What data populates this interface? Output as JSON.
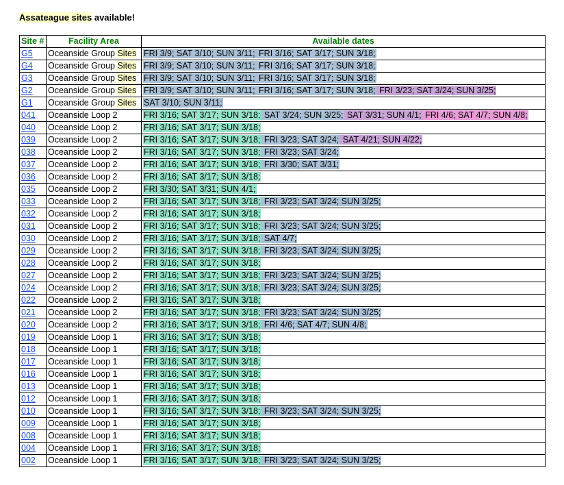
{
  "heading": {
    "highlight": "Assateague sites",
    "rest": " available!"
  },
  "columns": {
    "site": "Site #",
    "area": "Facility Area",
    "dates": "Available dates"
  },
  "rows": [
    {
      "site": "G5",
      "area": "Oceanside Group ",
      "area_hl": "Sites",
      "dates": [
        [
          "FRI 3/9; SAT 3/10; SUN 3/11;",
          "g2"
        ],
        [
          " FRI 3/16; SAT 3/17; SUN 3/18;",
          "g2"
        ]
      ]
    },
    {
      "site": "G4",
      "area": "Oceanside Group ",
      "area_hl": "Sites",
      "dates": [
        [
          "FRI 3/9; SAT 3/10; SUN 3/11;",
          "g2"
        ],
        [
          " FRI 3/16; SAT 3/17; SUN 3/18;",
          "g2"
        ]
      ]
    },
    {
      "site": "G3",
      "area": "Oceanside Group ",
      "area_hl": "Sites",
      "dates": [
        [
          "FRI 3/9; SAT 3/10; SUN 3/11;",
          "g2"
        ],
        [
          " FRI 3/16; SAT 3/17; SUN 3/18;",
          "g2"
        ]
      ]
    },
    {
      "site": "G2",
      "area": "Oceanside Group ",
      "area_hl": "Sites",
      "dates": [
        [
          "FRI 3/9; SAT 3/10; SUN 3/11;",
          "g2"
        ],
        [
          " FRI 3/16; SAT 3/17; SUN 3/18;",
          "g2"
        ],
        [
          " FRI 3/23; SAT 3/24; SUN 3/25;",
          "g3"
        ]
      ]
    },
    {
      "site": "G1",
      "area": "Oceanside Group ",
      "area_hl": "Sites",
      "dates": [
        [
          "SAT 3/10; SUN 3/11;",
          "g2"
        ]
      ]
    },
    {
      "site": "041",
      "area": "Oceanside Loop 2",
      "dates": [
        [
          "FRI 3/16; SAT 3/17; SUN 3/18;",
          "g1"
        ],
        [
          " SAT 3/24; SUN 3/25;",
          "g2"
        ],
        [
          " SAT 3/31; SUN 4/1;",
          "g3"
        ],
        [
          " FRI 4/6; SAT 4/7; SUN 4/8;",
          "g4"
        ]
      ]
    },
    {
      "site": "040",
      "area": "Oceanside Loop 2",
      "dates": [
        [
          "FRI 3/16; SAT 3/17; SUN 3/18;",
          "g1"
        ]
      ]
    },
    {
      "site": "039",
      "area": "Oceanside Loop 2",
      "dates": [
        [
          "FRI 3/16; SAT 3/17; SUN 3/18;",
          "g1"
        ],
        [
          " FRI 3/23; SAT 3/24;",
          "g2"
        ],
        [
          " SAT 4/21; SUN 4/22;",
          "g3"
        ]
      ]
    },
    {
      "site": "038",
      "area": "Oceanside Loop 2",
      "dates": [
        [
          "FRI 3/16; SAT 3/17; SUN 3/18;",
          "g1"
        ],
        [
          " FRI 3/23; SAT 3/24;",
          "g2"
        ]
      ]
    },
    {
      "site": "037",
      "area": "Oceanside Loop 2",
      "dates": [
        [
          "FRI 3/16; SAT 3/17; SUN 3/18;",
          "g1"
        ],
        [
          " FRI 3/30; SAT 3/31;",
          "g2"
        ]
      ]
    },
    {
      "site": "036",
      "area": "Oceanside Loop 2",
      "dates": [
        [
          "FRI 3/16; SAT 3/17; SUN 3/18;",
          "g1"
        ]
      ]
    },
    {
      "site": "035",
      "area": "Oceanside Loop 2",
      "dates": [
        [
          "FRI 3/30; SAT 3/31; SUN 4/1;",
          "g1"
        ]
      ]
    },
    {
      "site": "033",
      "area": "Oceanside Loop 2",
      "dates": [
        [
          "FRI 3/16; SAT 3/17; SUN 3/18;",
          "g1"
        ],
        [
          " FRI 3/23; SAT 3/24; SUN 3/25;",
          "g2"
        ]
      ]
    },
    {
      "site": "032",
      "area": "Oceanside Loop 2",
      "dates": [
        [
          "FRI 3/16; SAT 3/17; SUN 3/18;",
          "g1"
        ]
      ]
    },
    {
      "site": "031",
      "area": "Oceanside Loop 2",
      "dates": [
        [
          "FRI 3/16; SAT 3/17; SUN 3/18;",
          "g1"
        ],
        [
          " FRI 3/23; SAT 3/24; SUN 3/25;",
          "g2"
        ]
      ]
    },
    {
      "site": "030",
      "area": "Oceanside Loop 2",
      "dates": [
        [
          "FRI 3/16; SAT 3/17; SUN 3/18;",
          "g1"
        ],
        [
          " SAT 4/7;",
          "g2"
        ]
      ]
    },
    {
      "site": "029",
      "area": "Oceanside Loop 2",
      "dates": [
        [
          "FRI 3/16; SAT 3/17; SUN 3/18;",
          "g1"
        ],
        [
          " FRI 3/23; SAT 3/24; SUN 3/25;",
          "g2"
        ]
      ]
    },
    {
      "site": "028",
      "area": "Oceanside Loop 2",
      "dates": [
        [
          "FRI 3/16; SAT 3/17; SUN 3/18;",
          "g1"
        ]
      ]
    },
    {
      "site": "027",
      "area": "Oceanside Loop 2",
      "dates": [
        [
          "FRI 3/16; SAT 3/17; SUN 3/18;",
          "g1"
        ],
        [
          " FRI 3/23; SAT 3/24; SUN 3/25;",
          "g2"
        ]
      ]
    },
    {
      "site": "024",
      "area": "Oceanside Loop 2",
      "dates": [
        [
          "FRI 3/16; SAT 3/17; SUN 3/18;",
          "g1"
        ],
        [
          " FRI 3/23; SAT 3/24; SUN 3/25;",
          "g2"
        ]
      ]
    },
    {
      "site": "022",
      "area": "Oceanside Loop 2",
      "dates": [
        [
          "FRI 3/16; SAT 3/17; SUN 3/18;",
          "g1"
        ]
      ]
    },
    {
      "site": "021",
      "area": "Oceanside Loop 2",
      "dates": [
        [
          "FRI 3/16; SAT 3/17; SUN 3/18;",
          "g1"
        ],
        [
          " FRI 3/23; SAT 3/24; SUN 3/25;",
          "g2"
        ]
      ]
    },
    {
      "site": "020",
      "area": "Oceanside Loop 2",
      "dates": [
        [
          "FRI 3/16; SAT 3/17; SUN 3/18;",
          "g1"
        ],
        [
          " FRI 4/6; SAT 4/7; SUN 4/8;",
          "g2"
        ]
      ]
    },
    {
      "site": "019",
      "area": "Oceanside Loop 1",
      "dates": [
        [
          "FRI 3/16; SAT 3/17; SUN 3/18;",
          "g1"
        ]
      ]
    },
    {
      "site": "018",
      "area": "Oceanside Loop 1",
      "dates": [
        [
          "FRI 3/16; SAT 3/17; SUN 3/18;",
          "g1"
        ]
      ]
    },
    {
      "site": "017",
      "area": "Oceanside Loop 1",
      "dates": [
        [
          "FRI 3/16; SAT 3/17; SUN 3/18;",
          "g1"
        ]
      ]
    },
    {
      "site": "016",
      "area": "Oceanside Loop 1",
      "dates": [
        [
          "FRI 3/16; SAT 3/17; SUN 3/18;",
          "g1"
        ]
      ]
    },
    {
      "site": "013",
      "area": "Oceanside Loop 1",
      "dates": [
        [
          "FRI 3/16; SAT 3/17; SUN 3/18;",
          "g1"
        ]
      ]
    },
    {
      "site": "012",
      "area": "Oceanside Loop 1",
      "dates": [
        [
          "FRI 3/16; SAT 3/17; SUN 3/18;",
          "g1"
        ]
      ]
    },
    {
      "site": "010",
      "area": "Oceanside Loop 1",
      "dates": [
        [
          "FRI 3/16; SAT 3/17; SUN 3/18;",
          "g1"
        ],
        [
          " FRI 3/23; SAT 3/24; SUN 3/25;",
          "g2"
        ]
      ]
    },
    {
      "site": "009",
      "area": "Oceanside Loop 1",
      "dates": [
        [
          "FRI 3/16; SAT 3/17; SUN 3/18;",
          "g1"
        ]
      ]
    },
    {
      "site": "008",
      "area": "Oceanside Loop 1",
      "dates": [
        [
          "FRI 3/16; SAT 3/17; SUN 3/18;",
          "g1"
        ]
      ]
    },
    {
      "site": "004",
      "area": "Oceanside Loop 1",
      "dates": [
        [
          "FRI 3/16; SAT 3/17; SUN 3/18;",
          "g1"
        ]
      ]
    },
    {
      "site": "002",
      "area": "Oceanside Loop 1",
      "dates": [
        [
          "FRI 3/16; SAT 3/17; SUN 3/18;",
          "g1"
        ],
        [
          " FRI 3/23; SAT 3/24; SUN 3/25;",
          "g2"
        ]
      ]
    }
  ],
  "colors": {
    "group1": "#93e3c9",
    "group2": "#a9c0d6",
    "group3": "#c8a3d6",
    "group4": "#e99bd6",
    "header_text": "#0b7a0b",
    "link": "#1a4fd6",
    "highlight": "#ffffcc"
  }
}
